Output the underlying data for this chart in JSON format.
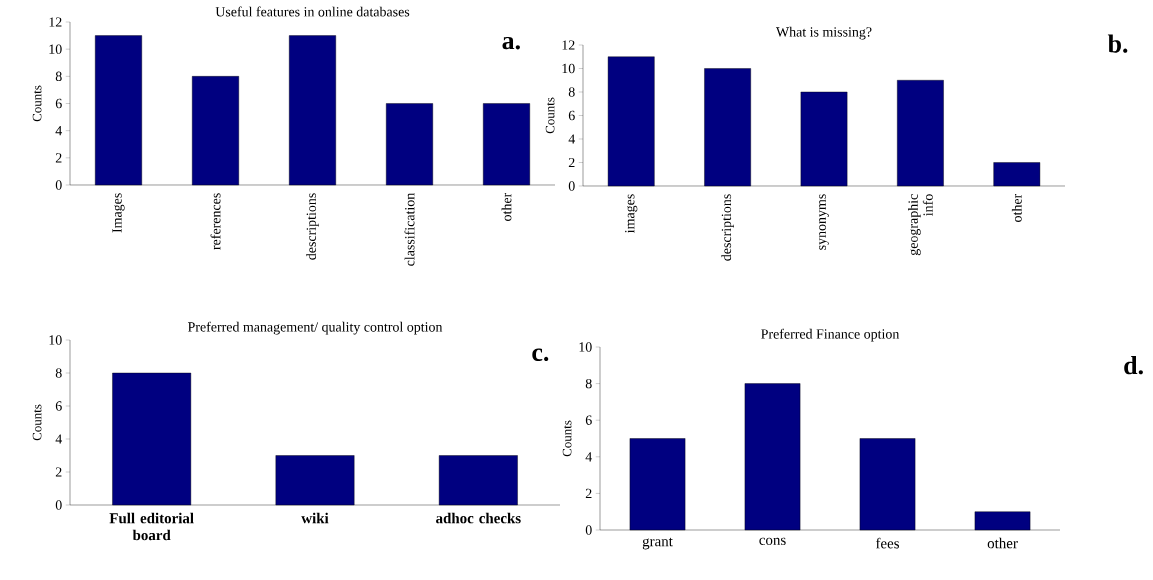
{
  "chart_data": [
    {
      "type": "bar",
      "title": "Useful features in online databases",
      "ylabel": "Counts",
      "categories": [
        "Images",
        "references",
        "descriptions",
        "classification",
        "other"
      ],
      "values": [
        11,
        8,
        11,
        6,
        6
      ],
      "color": "#000080",
      "ylim": [
        0,
        12
      ],
      "yticks": [
        0,
        2,
        4,
        6,
        8,
        10,
        12
      ],
      "annotations": [
        "a."
      ]
    },
    {
      "type": "bar",
      "title": "What is missing?",
      "ylabel": "Counts",
      "categories": [
        "images",
        "descriptions",
        "synonyms",
        "geographic info",
        "other"
      ],
      "values": [
        11,
        10,
        8,
        9,
        2
      ],
      "color": "#000080",
      "ylim": [
        0,
        12
      ],
      "yticks": [
        0,
        2,
        4,
        6,
        8,
        10,
        12
      ],
      "annotations": [
        "b."
      ]
    },
    {
      "type": "bar",
      "title": "Preferred management/ quality control option",
      "ylabel": "Counts",
      "categories": [
        "Full editorial board",
        "wiki",
        "adhoc checks"
      ],
      "values": [
        8,
        3,
        3
      ],
      "color": "#000080",
      "ylim": [
        0,
        10
      ],
      "yticks": [
        0,
        2,
        4,
        6,
        8,
        10
      ],
      "annotations": [
        "c."
      ]
    },
    {
      "type": "bar",
      "title": "Preferred Finance option",
      "ylabel": "Counts",
      "categories": [
        "grant",
        "cons",
        "fees",
        "other"
      ],
      "values": [
        5,
        8,
        5,
        1
      ],
      "color": "#000080",
      "ylim": [
        0,
        10
      ],
      "yticks": [
        0,
        2,
        4,
        6,
        8,
        10
      ],
      "annotations": [
        "d."
      ]
    }
  ]
}
